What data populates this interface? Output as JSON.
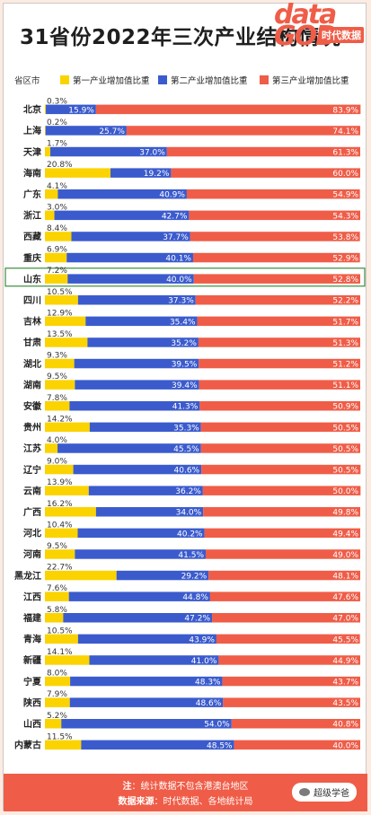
{
  "title": "31省份2022年三次产业结构情况",
  "brand": {
    "logo_top": "data",
    "logo_bottom": "GOD",
    "tag": "时代数据"
  },
  "legend": {
    "region_header": "省区市",
    "items": [
      {
        "label": "第一产业增加值比重",
        "color": "#fbd300"
      },
      {
        "label": "第二产业增加值比重",
        "color": "#3b5bcd"
      },
      {
        "label": "第三产业增加值比重",
        "color": "#ef5d48"
      }
    ]
  },
  "highlight": {
    "region": "山东",
    "color": "#3c8a3c"
  },
  "chart_data": {
    "type": "bar",
    "stacked": true,
    "orientation": "horizontal",
    "unit": "%",
    "categories": [
      "北京",
      "上海",
      "天津",
      "海南",
      "广东",
      "浙江",
      "西藏",
      "重庆",
      "山东",
      "四川",
      "吉林",
      "甘肃",
      "湖北",
      "湖南",
      "安徽",
      "贵州",
      "江苏",
      "辽宁",
      "云南",
      "广西",
      "河北",
      "河南",
      "黑龙江",
      "江西",
      "福建",
      "青海",
      "新疆",
      "宁夏",
      "陕西",
      "山西",
      "内蒙古"
    ],
    "series": [
      {
        "name": "第一产业增加值比重",
        "color": "#fbd300",
        "values": [
          0.3,
          0.2,
          1.7,
          20.8,
          4.1,
          3.0,
          8.4,
          6.9,
          7.2,
          10.5,
          12.9,
          13.5,
          9.3,
          9.5,
          7.8,
          14.2,
          4.0,
          9.0,
          13.9,
          16.2,
          10.4,
          9.5,
          22.7,
          7.6,
          5.8,
          10.5,
          14.1,
          8.0,
          7.9,
          5.2,
          11.5
        ]
      },
      {
        "name": "第二产业增加值比重",
        "color": "#3b5bcd",
        "values": [
          15.9,
          25.7,
          37.0,
          19.2,
          40.9,
          42.7,
          37.7,
          40.1,
          40.0,
          37.3,
          35.4,
          35.2,
          39.5,
          39.4,
          41.3,
          35.3,
          45.5,
          40.6,
          36.2,
          34.0,
          40.2,
          41.5,
          29.2,
          44.8,
          47.2,
          43.9,
          41.0,
          48.3,
          48.6,
          54.0,
          48.5
        ]
      },
      {
        "name": "第三产业增加值比重",
        "color": "#ef5d48",
        "values": [
          83.9,
          74.1,
          61.3,
          60.0,
          54.9,
          54.3,
          53.8,
          52.9,
          52.8,
          52.2,
          51.7,
          51.3,
          51.2,
          51.1,
          50.9,
          50.5,
          50.5,
          50.5,
          50.0,
          49.8,
          49.4,
          49.0,
          48.1,
          47.6,
          47.0,
          45.5,
          44.9,
          43.7,
          43.5,
          40.8,
          40.0
        ]
      }
    ]
  },
  "footer": {
    "note_label": "注",
    "note_text": "：统计数据不包含港澳台地区",
    "source_label": "数据来源",
    "source_text": "：时代数据、各地统计局",
    "wechat": "超级学爸"
  }
}
